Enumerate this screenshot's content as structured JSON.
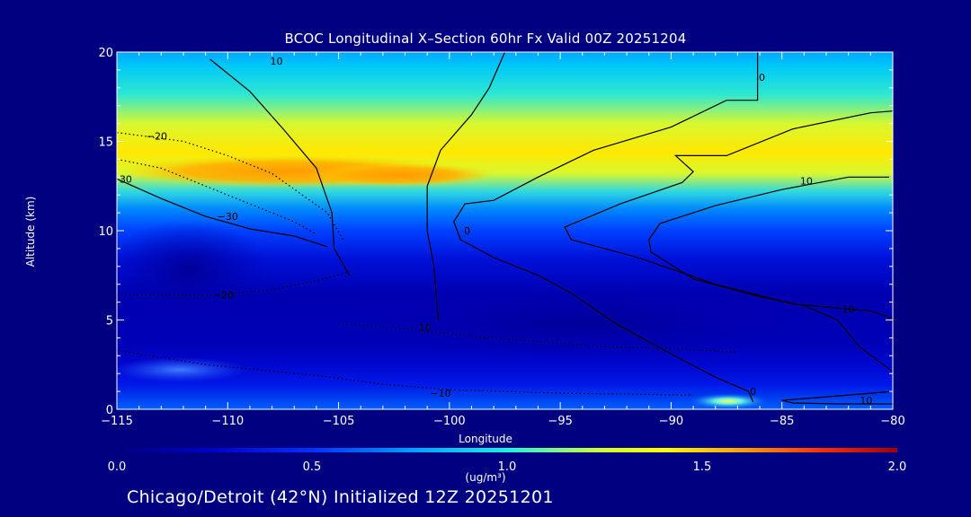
{
  "chart_data": {
    "type": "heatmap",
    "title": "BCOC Longitudinal X–Section 60hr  Fx Valid 00Z 20251204",
    "xlabel": "Longitude",
    "ylabel": "Altitude (km)",
    "xlim": [
      -115,
      -80
    ],
    "ylim": [
      0,
      20
    ],
    "x_ticks": [
      "−115",
      "−110",
      "−105",
      "−100",
      "−95",
      "−90",
      "−85",
      "−80"
    ],
    "y_ticks": [
      "0",
      "5",
      "10",
      "15",
      "20"
    ],
    "colorbar": {
      "label": "(ug/m³)",
      "range": [
        0.0,
        2.0
      ],
      "tick_labels": [
        "0.0",
        "0.5",
        "1.0",
        "1.5",
        "2.0"
      ]
    },
    "concentration_features": [
      {
        "feature": "upper maximum band",
        "lon_range": [
          -112,
          -97
        ],
        "alt_km": 13.3,
        "value": 1.25
      },
      {
        "feature": "upper band east",
        "lon_range": [
          -97,
          -80
        ],
        "alt_km": 14.0,
        "value": 0.95
      },
      {
        "feature": "mid troposphere",
        "lon_range": [
          -115,
          -80
        ],
        "alt_km": 6.0,
        "value": 0.15
      },
      {
        "feature": "boundary layer",
        "lon_range": [
          -115,
          -80
        ],
        "alt_km": 2.0,
        "value": 0.3
      },
      {
        "feature": "surface peak",
        "lon_range": [
          -89,
          -86
        ],
        "alt_km": 0.2,
        "value": 1.0
      }
    ],
    "contour_lines": [
      {
        "value": "10",
        "points": [
          [
            -110.8,
            19.6
          ],
          [
            -109,
            17.8
          ],
          [
            -107.5,
            15.7
          ],
          [
            -106,
            13.5
          ],
          [
            -105.3,
            11
          ],
          [
            -105.2,
            9
          ],
          [
            -104.5,
            7.5
          ]
        ]
      },
      {
        "value": "-20",
        "points": [
          [
            -115,
            15.5
          ],
          [
            -112,
            15
          ],
          [
            -110,
            14.2
          ],
          [
            -108,
            13.2
          ],
          [
            -105.5,
            11
          ],
          [
            -104.8,
            9.5
          ]
        ]
      },
      {
        "value": "-20",
        "points": [
          [
            -115,
            14.0
          ],
          [
            -113,
            13.5
          ],
          [
            -111,
            12.5
          ],
          [
            -109,
            11.5
          ],
          [
            -107,
            10.5
          ],
          [
            -106,
            9.8
          ]
        ]
      },
      {
        "value": "30",
        "points": [
          [
            -115,
            12.9
          ],
          [
            -113,
            11.8
          ],
          [
            -111,
            10.8
          ],
          [
            -109,
            10.1
          ],
          [
            -107,
            9.7
          ],
          [
            -105.5,
            9.1
          ]
        ]
      },
      {
        "value": "-20",
        "points": [
          [
            -115,
            6.4
          ],
          [
            -113,
            6.4
          ],
          [
            -110.5,
            6.4
          ],
          [
            -108,
            6.7
          ],
          [
            -106,
            7.2
          ],
          [
            -104.5,
            7.7
          ]
        ]
      },
      {
        "value": "10",
        "points": [
          [
            -97.5,
            20
          ],
          [
            -98.2,
            18
          ],
          [
            -99,
            16.5
          ],
          [
            -100.4,
            14.5
          ],
          [
            -101,
            12.5
          ],
          [
            -101,
            10
          ],
          [
            -100.7,
            8
          ],
          [
            -100.5,
            5
          ]
        ]
      },
      {
        "value": "-10",
        "points": [
          [
            -105,
            4.8
          ],
          [
            -102,
            4.5
          ],
          [
            -99,
            4.1
          ],
          [
            -96,
            3.8
          ],
          [
            -93,
            3.5
          ],
          [
            -90,
            3.4
          ],
          [
            -87,
            3.2
          ]
        ]
      },
      {
        "value": "-10",
        "points": [
          [
            -115,
            3.3
          ],
          [
            -111,
            2.5
          ],
          [
            -106,
            1.9
          ],
          [
            -103,
            1.4
          ],
          [
            -100,
            1.1
          ],
          [
            -95,
            0.9
          ],
          [
            -89,
            0.8
          ]
        ]
      },
      {
        "value": "0",
        "points": [
          [
            -86.1,
            20
          ],
          [
            -86.1,
            17.3
          ],
          [
            -87.5,
            17.3
          ],
          [
            -90,
            15.8
          ],
          [
            -93.5,
            14.5
          ],
          [
            -96,
            13
          ],
          [
            -98,
            11.7
          ],
          [
            -99.3,
            11.5
          ],
          [
            -99.8,
            10.5
          ],
          [
            -99.5,
            9.5
          ],
          [
            -98,
            8.5
          ],
          [
            -96,
            7.5
          ],
          [
            -94.5,
            6.5
          ],
          [
            -92.5,
            4.8
          ],
          [
            -90,
            3.1
          ],
          [
            -88,
            1.8
          ],
          [
            -86.5,
            1.0
          ],
          [
            -86.3,
            0.4
          ]
        ]
      },
      {
        "value": "10",
        "points": [
          [
            -80,
            16.7
          ],
          [
            -81,
            16.6
          ],
          [
            -84.5,
            15.7
          ],
          [
            -87.5,
            14.2
          ],
          [
            -89.8,
            14.2
          ],
          [
            -89,
            13.3
          ],
          [
            -89.5,
            12.7
          ],
          [
            -92.3,
            11.5
          ],
          [
            -94.8,
            10.2
          ],
          [
            -94.5,
            9.5
          ],
          [
            -91.5,
            8.5
          ],
          [
            -88,
            7.0
          ],
          [
            -84.5,
            5.9
          ],
          [
            -81,
            5.5
          ],
          [
            -80,
            5.1
          ]
        ]
      },
      {
        "value": "10",
        "points": [
          [
            -80,
            13.0
          ],
          [
            -82,
            13.0
          ],
          [
            -85,
            12.3
          ],
          [
            -88,
            11.4
          ],
          [
            -90.5,
            10.4
          ],
          [
            -91,
            9.5
          ],
          [
            -90.9,
            8.8
          ],
          [
            -89,
            7.3
          ],
          [
            -86,
            6.3
          ],
          [
            -84,
            5.8
          ],
          [
            -82.5,
            5
          ],
          [
            -81.5,
            3.5
          ],
          [
            -80,
            2.1
          ]
        ]
      },
      {
        "value": "10",
        "points": [
          [
            -80,
            1.0
          ],
          [
            -82,
            0.8
          ],
          [
            -84,
            0.6
          ],
          [
            -85,
            0.5
          ],
          [
            -84.5,
            0.35
          ],
          [
            -82.5,
            0.3
          ],
          [
            -80,
            0.3
          ]
        ]
      }
    ],
    "contour_label_texts": [
      {
        "text": "10",
        "lon": -107.8,
        "alt": 19.5
      },
      {
        "text": "−20",
        "lon": -113.2,
        "alt": 15.3
      },
      {
        "text": "30",
        "lon": -114.6,
        "alt": 12.9
      },
      {
        "text": "−30",
        "lon": -110,
        "alt": 10.8
      },
      {
        "text": "−20",
        "lon": -110.2,
        "alt": 6.4
      },
      {
        "text": "10",
        "lon": -101.1,
        "alt": 4.6
      },
      {
        "text": "−10",
        "lon": -100.4,
        "alt": 0.9
      },
      {
        "text": "0",
        "lon": -85.9,
        "alt": 18.6
      },
      {
        "text": "0",
        "lon": -99.2,
        "alt": 10.0
      },
      {
        "text": "10",
        "lon": -83.9,
        "alt": 12.8
      },
      {
        "text": "10",
        "lon": -82,
        "alt": 5.6
      },
      {
        "text": "0",
        "lon": -86.3,
        "alt": 1.0
      },
      {
        "text": "10",
        "lon": -81.2,
        "alt": 0.5
      }
    ],
    "grid": false,
    "legend": "colorbar-bottom"
  },
  "footer": "Chicago/Detroit (42°N) Initialized 12Z 20251201"
}
